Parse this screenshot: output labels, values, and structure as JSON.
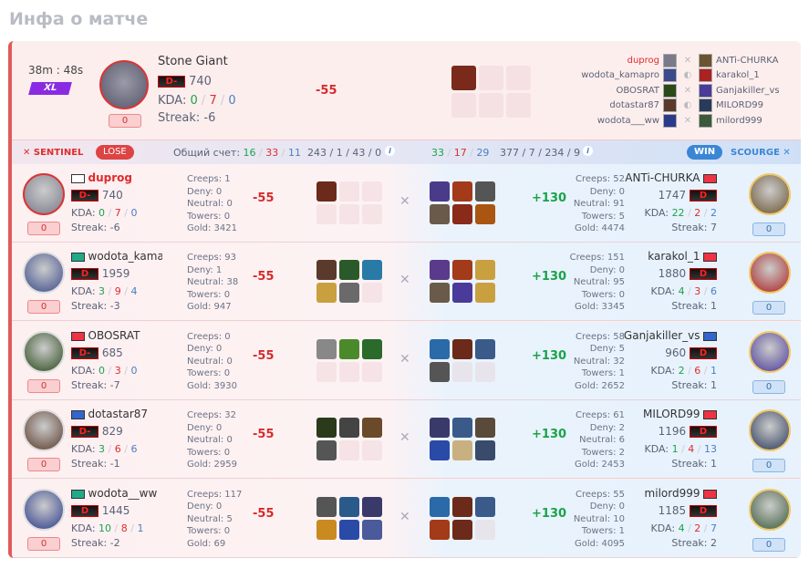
{
  "page_title": "Инфа о матче",
  "match": {
    "duration": "38m : 48s",
    "mode": "XL",
    "hero": "Stone Giant",
    "rank": "D-",
    "rating": "740",
    "kda_label": "KDA:",
    "kda": [
      "0",
      "7",
      "0"
    ],
    "streak": "Streak: -6",
    "pill": "0",
    "delta": "-55",
    "items": [
      "#7a2a1a"
    ],
    "lineup": [
      [
        "duprog",
        "ANTi-CHURKA",
        "swords-icon"
      ],
      [
        "wodota_kamapro",
        "karakol_1",
        "shield-icon"
      ],
      [
        "OBOSRAT",
        "Ganjakiller_vs",
        "swords-icon"
      ],
      [
        "dotastar87",
        "MILORD99",
        "shield-icon"
      ],
      [
        "wodota___ww",
        "milord999",
        "swords-icon"
      ]
    ]
  },
  "sentinel": {
    "name": "SENTINEL",
    "result": "LOSE",
    "score_label": "Общий счет:",
    "kda": [
      "16",
      "33",
      "11"
    ],
    "stats": "243 / 1 / 43 / 0"
  },
  "scourge": {
    "name": "SCOURGE",
    "result": "WIN",
    "kda": [
      "33",
      "17",
      "29"
    ],
    "stats": "377 / 7 / 234 / 9"
  },
  "colors": {
    "sentinel": "#e02c2c",
    "scourge": "#3a86d4",
    "positive": "#1aa34a",
    "negative": "#d62b2b"
  },
  "rows": [
    {
      "left": {
        "name": "duprog",
        "rank": "D-",
        "rating": "740",
        "kda": [
          "0",
          "7",
          "0"
        ],
        "streak": "Streak: -6",
        "pill": "0",
        "creeps": "Creeps: 1",
        "deny": "Deny: 0",
        "neutral": "Neutral: 0",
        "towers": "Towers: 0",
        "gold": "Gold: 3421",
        "delta": "-55",
        "avatar": "#7a7a8a",
        "flag": "#fff",
        "items": [
          "#6b2a1a"
        ]
      },
      "right": {
        "name": "ANTi-CHURKA",
        "rank": "D",
        "rating": "1747",
        "kda": [
          "22",
          "2",
          "2"
        ],
        "streak": "Streak: 7",
        "pill": "0",
        "creeps": "Creeps: 52",
        "deny": "Deny: 0",
        "neutral": "Neutral: 91",
        "towers": "Towers: 5",
        "gold": "Gold: 4474",
        "delta": "+130",
        "avatar": "#6a5430",
        "flag": "#e34",
        "items": [
          "#4a3a8a",
          "#a33a1a",
          "#555",
          "#6a5a4a",
          "#8a2a1a",
          "#a51"
        ]
      }
    },
    {
      "left": {
        "name": "wodota_kama",
        "rank": "D",
        "rating": "1959",
        "kda": [
          "3",
          "9",
          "4"
        ],
        "streak": "Streak: -3",
        "pill": "0",
        "creeps": "Creeps: 93",
        "deny": "Deny: 1",
        "neutral": "Neutral: 38",
        "towers": "Towers: 0",
        "gold": "Gold: 947",
        "delta": "-55",
        "avatar": "#3a4a8a",
        "flag": "#2a8",
        "items": [
          "#5a3a2a",
          "#2a5a2a",
          "#2a7aa8",
          "#c9a040",
          "#6a6a6a"
        ]
      },
      "right": {
        "name": "karakol_1",
        "rank": "D",
        "rating": "1880",
        "kda": [
          "4",
          "3",
          "6"
        ],
        "streak": "Streak: 1",
        "pill": "0",
        "creeps": "Creeps: 151",
        "deny": "Deny: 0",
        "neutral": "Neutral: 95",
        "towers": "Towers: 0",
        "gold": "Gold: 3345",
        "delta": "+130",
        "avatar": "#a22",
        "flag": "#e34",
        "items": [
          "#5a3a8a",
          "#a33a1a",
          "#c9a040",
          "#6a5a4a",
          "#4a3a9a",
          "#c9a040"
        ]
      }
    },
    {
      "left": {
        "name": "OBOSRAT",
        "rank": "D-",
        "rating": "685",
        "kda": [
          "0",
          "3",
          "0"
        ],
        "streak": "Streak: -7",
        "pill": "0",
        "creeps": "Creeps: 0",
        "deny": "Deny: 0",
        "neutral": "Neutral: 0",
        "towers": "Towers: 0",
        "gold": "Gold: 3930",
        "delta": "-55",
        "avatar": "#2a4a1a",
        "flag": "#e34",
        "items": [
          "#888",
          "#4a8a2a",
          "#2a6a2a"
        ]
      },
      "right": {
        "name": "Ganjakiller_vs",
        "rank": "D",
        "rating": "960",
        "kda": [
          "2",
          "6",
          "1"
        ],
        "streak": "Streak: 1",
        "pill": "0",
        "creeps": "Creeps: 58",
        "deny": "Deny: 5",
        "neutral": "Neutral: 32",
        "towers": "Towers: 1",
        "gold": "Gold: 2652",
        "delta": "+130",
        "avatar": "#4a3a9a",
        "flag": "#36c",
        "items": [
          "#2a6aa8",
          "#6b2a1a",
          "#3a5a8a",
          "#555"
        ]
      }
    },
    {
      "left": {
        "name": "dotastar87",
        "rank": "D-",
        "rating": "829",
        "kda": [
          "3",
          "6",
          "6"
        ],
        "streak": "Streak: -1",
        "pill": "0",
        "creeps": "Creeps: 32",
        "deny": "Deny: 0",
        "neutral": "Neutral: 0",
        "towers": "Towers: 0",
        "gold": "Gold: 2959",
        "delta": "-55",
        "avatar": "#5a3a2a",
        "flag": "#36c",
        "items": [
          "#2a3a1a",
          "#444",
          "#6b4a2a",
          "#555"
        ]
      },
      "right": {
        "name": "MILORD99",
        "rank": "D",
        "rating": "1196",
        "kda": [
          "1",
          "4",
          "13"
        ],
        "streak": "Streak: 1",
        "pill": "0",
        "creeps": "Creeps: 61",
        "deny": "Deny: 2",
        "neutral": "Neutral: 6",
        "towers": "Towers: 2",
        "gold": "Gold: 2453",
        "delta": "+130",
        "avatar": "#2a3a5a",
        "flag": "#e34",
        "items": [
          "#3a3a6a",
          "#3a5a8a",
          "#5a4a3a",
          "#2a4aa8",
          "#c9b080",
          "#3a4a6a"
        ]
      }
    },
    {
      "left": {
        "name": "wodota__ww",
        "rank": "D",
        "rating": "1445",
        "kda": [
          "10",
          "8",
          "1"
        ],
        "streak": "Streak: -2",
        "pill": "0",
        "creeps": "Creeps: 117",
        "deny": "Deny: 0",
        "neutral": "Neutral: 5",
        "towers": "Towers: 0",
        "gold": "Gold: 69",
        "delta": "-55",
        "avatar": "#2a3a8a",
        "flag": "#2a8",
        "items": [
          "#555",
          "#2a5a8a",
          "#3a3a6a",
          "#c98a20",
          "#2a4aa8",
          "#4a5a9a"
        ]
      },
      "right": {
        "name": "milord999",
        "rank": "D",
        "rating": "1185",
        "kda": [
          "4",
          "2",
          "7"
        ],
        "streak": "Streak: 2",
        "pill": "0",
        "creeps": "Creeps: 55",
        "deny": "Deny: 0",
        "neutral": "Neutral: 10",
        "towers": "Towers: 1",
        "gold": "Gold: 4095",
        "delta": "+130",
        "avatar": "#3a5a3a",
        "flag": "#e34",
        "items": [
          "#2a6aa8",
          "#6b2a1a",
          "#3a5a8a",
          "#a33a1a",
          "#6b2a1a"
        ]
      }
    }
  ]
}
